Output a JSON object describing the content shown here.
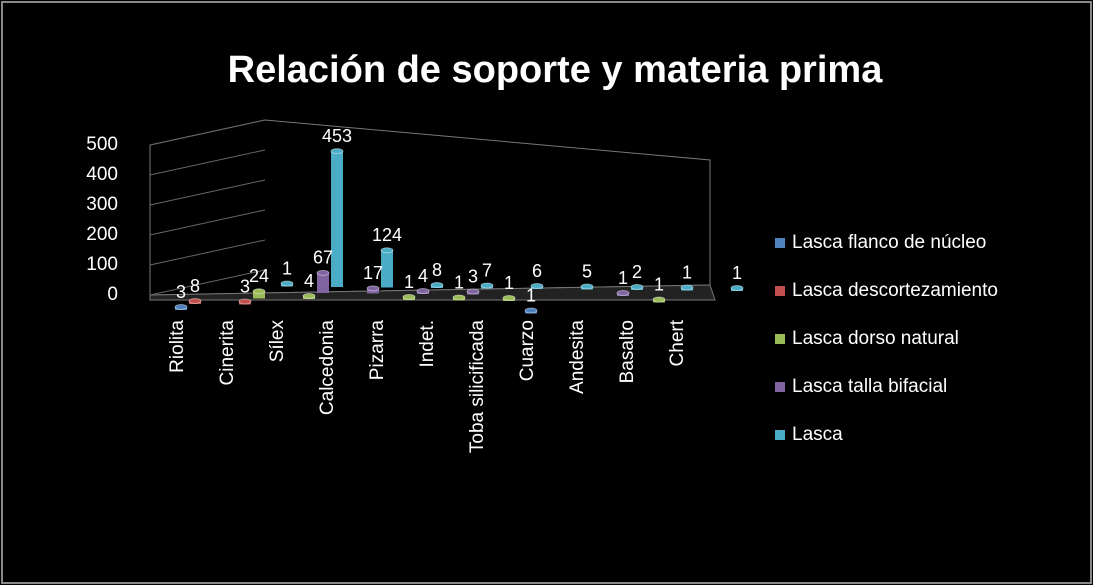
{
  "chart_data": {
    "type": "bar3d",
    "title": "Relación de soporte y materia prima",
    "categories": [
      "Riolita",
      "Cinerita",
      "Sílex",
      "Calcedonia",
      "Pizarra",
      "Indet.",
      "Toba silicificada",
      "Cuarzo",
      "Andesita",
      "Basalto",
      "Chert"
    ],
    "series": [
      {
        "name": "Lasca flanco de núcleo",
        "color": "#4f81bd",
        "values": [
          3,
          null,
          null,
          null,
          null,
          null,
          null,
          1,
          null,
          null,
          null
        ]
      },
      {
        "name": "Lasca descortezamiento",
        "color": "#c0504d",
        "values": [
          8,
          3,
          null,
          null,
          null,
          null,
          null,
          null,
          null,
          null,
          null
        ]
      },
      {
        "name": "Lasca dorso natural",
        "color": "#9bbb59",
        "values": [
          null,
          24,
          4,
          null,
          1,
          1,
          1,
          null,
          null,
          1,
          null
        ]
      },
      {
        "name": "Lasca talla bifacial",
        "color": "#8064a2",
        "values": [
          null,
          null,
          67,
          17,
          4,
          3,
          null,
          null,
          1,
          null,
          null
        ]
      },
      {
        "name": "Lasca",
        "color": "#4bacc6",
        "values": [
          null,
          1,
          453,
          124,
          8,
          7,
          6,
          5,
          2,
          1,
          1
        ]
      }
    ],
    "ylim": [
      0,
      500
    ],
    "yticks": [
      0,
      100,
      200,
      300,
      400,
      500
    ],
    "grid": true
  }
}
